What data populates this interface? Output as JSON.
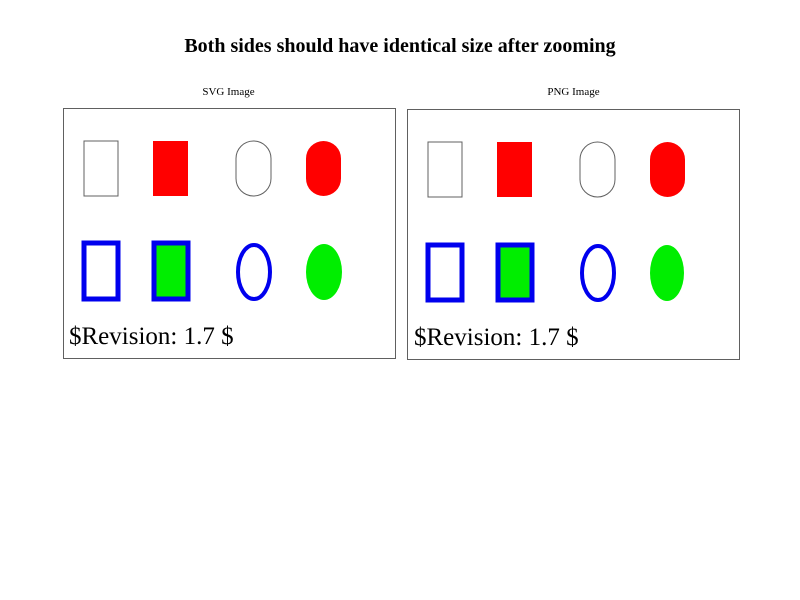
{
  "page": {
    "title": "Both sides should have identical size after zooming"
  },
  "panels": {
    "svg": {
      "caption": "SVG Image",
      "revision": "$Revision: 1.7 $"
    },
    "png": {
      "caption": "PNG Image",
      "revision": "$Revision: 1.7 $"
    }
  },
  "colors": {
    "outline": "#606060",
    "red": "#ff0000",
    "blue": "#0000ee",
    "green": "#00ee00",
    "background": "#ffffff"
  }
}
